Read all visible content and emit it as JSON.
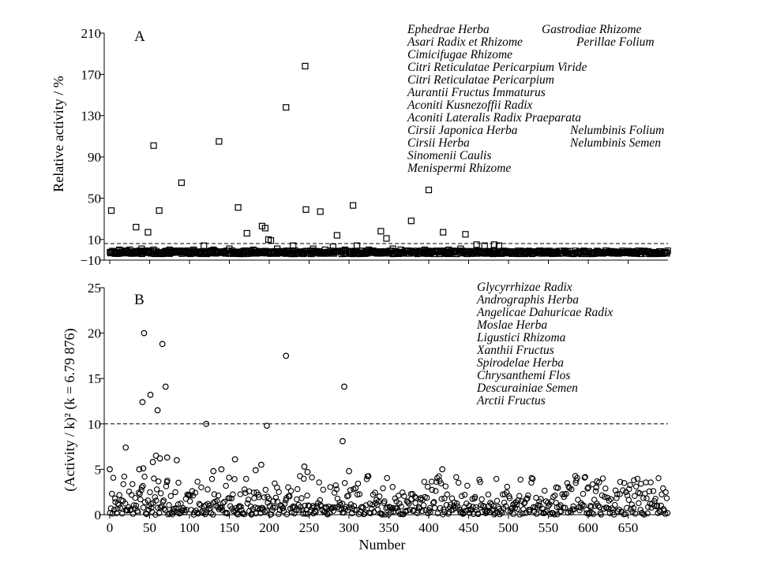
{
  "chart_data": [
    {
      "type": "scatter",
      "panel_label": "A",
      "ylabel": "Relative activity / %",
      "ylim": [
        -10,
        210
      ],
      "yticks": [
        "−10",
        "10",
        "50",
        "90",
        "130",
        "170",
        "210"
      ],
      "ytick_values": [
        -10,
        10,
        50,
        90,
        130,
        170,
        210
      ],
      "xlim": [
        0,
        700
      ],
      "threshold": 6,
      "marker": "square",
      "legend": "none",
      "grid": false,
      "points": [
        {
          "x": 2,
          "y": 38
        },
        {
          "x": 33,
          "y": 22
        },
        {
          "x": 48,
          "y": 17
        },
        {
          "x": 55,
          "y": 101
        },
        {
          "x": 62,
          "y": 38
        },
        {
          "x": 90,
          "y": 65
        },
        {
          "x": 137,
          "y": 105
        },
        {
          "x": 161,
          "y": 41
        },
        {
          "x": 172,
          "y": 16
        },
        {
          "x": 191,
          "y": 23
        },
        {
          "x": 195,
          "y": 21
        },
        {
          "x": 199,
          "y": 10
        },
        {
          "x": 202,
          "y": 9
        },
        {
          "x": 221,
          "y": 138
        },
        {
          "x": 245,
          "y": 178
        },
        {
          "x": 246,
          "y": 39
        },
        {
          "x": 264,
          "y": 37
        },
        {
          "x": 280,
          "y": 3
        },
        {
          "x": 285,
          "y": 14
        },
        {
          "x": 305,
          "y": 43
        },
        {
          "x": 340,
          "y": 18
        },
        {
          "x": 347,
          "y": 11
        },
        {
          "x": 378,
          "y": 28
        },
        {
          "x": 400,
          "y": 58
        },
        {
          "x": 418,
          "y": 17
        },
        {
          "x": 446,
          "y": 15
        },
        {
          "x": 460,
          "y": 5
        },
        {
          "x": 470,
          "y": 4
        },
        {
          "x": 482,
          "y": 5
        },
        {
          "x": 488,
          "y": 4
        },
        {
          "x": 118,
          "y": 4
        },
        {
          "x": 230,
          "y": 4
        },
        {
          "x": 310,
          "y": 4
        },
        {
          "x": 12,
          "y": 0
        },
        {
          "x": 25,
          "y": 0
        },
        {
          "x": 40,
          "y": 1
        },
        {
          "x": 55,
          "y": 0
        },
        {
          "x": 75,
          "y": 0
        },
        {
          "x": 105,
          "y": 0
        },
        {
          "x": 130,
          "y": 0
        },
        {
          "x": 150,
          "y": 1
        },
        {
          "x": 168,
          "y": -2
        },
        {
          "x": 180,
          "y": 0
        },
        {
          "x": 210,
          "y": 1
        },
        {
          "x": 255,
          "y": 1
        },
        {
          "x": 270,
          "y": 0
        },
        {
          "x": 295,
          "y": 0
        },
        {
          "x": 325,
          "y": 0
        },
        {
          "x": 355,
          "y": 1
        },
        {
          "x": 365,
          "y": 0
        },
        {
          "x": 395,
          "y": 0
        },
        {
          "x": 425,
          "y": 0
        },
        {
          "x": 440,
          "y": 1
        }
      ],
      "annotations": [
        [
          "Ephedrae Herba",
          "Gastrodiae Rhizome"
        ],
        [
          "Asari Radix et Rhizome",
          "Perillae Folium"
        ],
        [
          "Cimicifugae Rhizome"
        ],
        [
          "Citri Reticulatae Pericarpium Viride"
        ],
        [
          "Citri Reticulatae Pericarpium"
        ],
        [
          "Aurantii Fructus Immaturus"
        ],
        [
          "Aconiti Kusnezoffii Radix"
        ],
        [
          "Aconiti Lateralis Radix Praeparata"
        ],
        [
          "Cirsii Japonica Herba",
          "Nelumbinis Folium"
        ],
        [
          "Cirsii Herba",
          "Nelumbinis Semen"
        ],
        [
          "Sinomenii Caulis"
        ],
        [
          "Menispermi Rhizome"
        ]
      ]
    },
    {
      "type": "scatter",
      "panel_label": "B",
      "ylabel": "(Activity / k)² (k = 6.79 876)",
      "ylim": [
        0,
        25
      ],
      "yticks": [
        "0",
        "5",
        "10",
        "15",
        "20",
        "25"
      ],
      "ytick_values": [
        0,
        5,
        10,
        15,
        20,
        25
      ],
      "xlabel": "Number",
      "xlim": [
        0,
        700
      ],
      "xticks": [
        "0",
        "50",
        "100",
        "150",
        "200",
        "250",
        "300",
        "350",
        "400",
        "450",
        "500",
        "550",
        "600",
        "650"
      ],
      "xtick_values": [
        0,
        50,
        100,
        150,
        200,
        250,
        300,
        350,
        400,
        450,
        500,
        550,
        600,
        650
      ],
      "threshold": 10,
      "marker": "circle",
      "legend": "none",
      "grid": false,
      "points": [
        {
          "x": 43,
          "y": 20.0
        },
        {
          "x": 66,
          "y": 18.8
        },
        {
          "x": 70,
          "y": 14.1
        },
        {
          "x": 51,
          "y": 13.2
        },
        {
          "x": 41,
          "y": 12.4
        },
        {
          "x": 60,
          "y": 11.5
        },
        {
          "x": 121,
          "y": 10.0
        },
        {
          "x": 197,
          "y": 9.8
        },
        {
          "x": 221,
          "y": 17.5
        },
        {
          "x": 294,
          "y": 14.1
        },
        {
          "x": 292,
          "y": 8.1
        },
        {
          "x": 417,
          "y": 5.0
        },
        {
          "x": 0,
          "y": 5.0
        },
        {
          "x": 20,
          "y": 7.4
        },
        {
          "x": 42,
          "y": 5.1
        },
        {
          "x": 54,
          "y": 5.8
        },
        {
          "x": 58,
          "y": 6.5
        },
        {
          "x": 63,
          "y": 6.2
        },
        {
          "x": 72,
          "y": 6.3
        },
        {
          "x": 84,
          "y": 6.0
        },
        {
          "x": 157,
          "y": 6.1
        },
        {
          "x": 190,
          "y": 5.5
        },
        {
          "x": 37,
          "y": 5.0
        },
        {
          "x": 130,
          "y": 4.8
        },
        {
          "x": 140,
          "y": 5.0
        },
        {
          "x": 183,
          "y": 4.9
        },
        {
          "x": 244,
          "y": 5.3
        },
        {
          "x": 248,
          "y": 4.7
        },
        {
          "x": 300,
          "y": 4.8
        },
        {
          "x": 560,
          "y": 3.0
        },
        {
          "x": 600,
          "y": 3.0
        },
        {
          "x": 610,
          "y": 3.0
        }
      ],
      "annotations": [
        [
          "Glycyrrhizae Radix"
        ],
        [
          "Andrographis Herba"
        ],
        [
          "Angelicae Dahuricae Radix"
        ],
        [
          "Moslae Herba"
        ],
        [
          "Ligustici Rhizoma"
        ],
        [
          "Xanthii Fructus"
        ],
        [
          "Spirodelae Herba"
        ],
        [
          "Chrysanthemi Flos"
        ],
        [
          "Descurainiae Semen"
        ],
        [
          "Arctii Fructus"
        ]
      ]
    }
  ]
}
